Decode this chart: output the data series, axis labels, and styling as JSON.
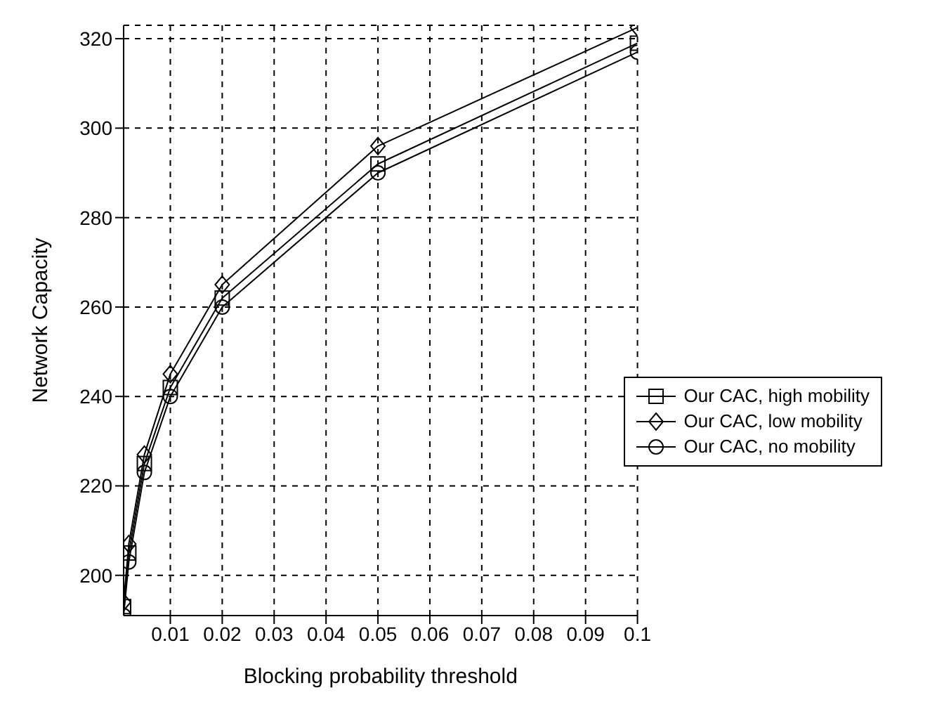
{
  "chart_data": {
    "type": "line",
    "xlabel": "Blocking probability threshold",
    "ylabel": "Network Capacity",
    "x": [
      0.001,
      0.002,
      0.005,
      0.01,
      0.02,
      0.05,
      0.1
    ],
    "series": [
      {
        "name": "Our CAC, high mobility",
        "color": "#000000",
        "marker": "square",
        "values": [
          193,
          205,
          225,
          242,
          262,
          292,
          319
        ]
      },
      {
        "name": "Our CAC, low mobility",
        "color": "#000000",
        "marker": "diamond",
        "values": [
          194,
          207,
          227,
          245,
          265,
          296,
          322.5
        ]
      },
      {
        "name": "Our CAC, no mobility",
        "color": "#000000",
        "marker": "circle",
        "values": [
          191,
          203,
          223,
          240,
          260,
          290,
          317
        ]
      }
    ],
    "xlim": [
      0.001,
      0.1
    ],
    "xticks": [
      0.01,
      0.02,
      0.03,
      0.04,
      0.05,
      0.06,
      0.07,
      0.08,
      0.09,
      0.1
    ],
    "ylim": [
      191,
      323
    ],
    "yticks": [
      200,
      220,
      240,
      260,
      280,
      300,
      320
    ],
    "grid": true,
    "legend": "right",
    "line_style": "solid"
  }
}
